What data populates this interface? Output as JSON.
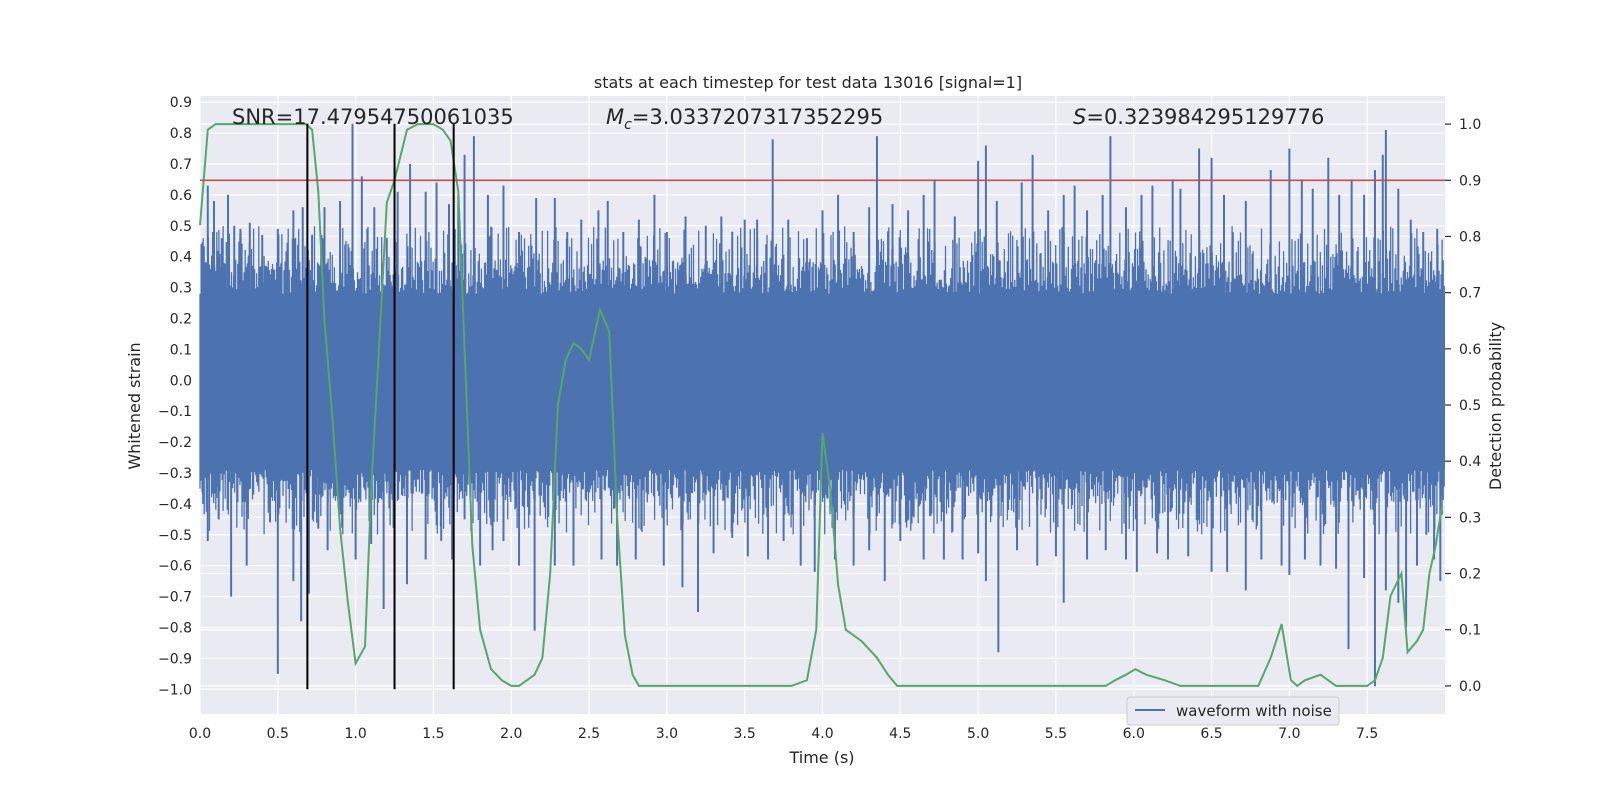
{
  "chart_data": {
    "type": "line",
    "title": "stats at each timestep for test data 13016 [signal=1]",
    "xlabel": "Time (s)",
    "ylabel": "Whitened strain",
    "y2label": "Detection probability",
    "xlim": [
      0.0,
      8.0
    ],
    "ylim": [
      -1.08,
      0.92
    ],
    "y2lim": [
      -0.05,
      1.05
    ],
    "x_ticks": [
      "0.0",
      "0.5",
      "1.0",
      "1.5",
      "2.0",
      "2.5",
      "3.0",
      "3.5",
      "4.0",
      "4.5",
      "5.0",
      "5.5",
      "6.0",
      "6.5",
      "7.0",
      "7.5"
    ],
    "y_ticks": [
      "0.9",
      "0.8",
      "0.7",
      "0.6",
      "0.5",
      "0.4",
      "0.3",
      "0.2",
      "0.1",
      "0.0",
      "-0.1",
      "-0.2",
      "-0.3",
      "-0.4",
      "-0.5",
      "-0.6",
      "-0.7",
      "-0.8",
      "-0.9",
      "-1.0"
    ],
    "y2_ticks": [
      "1.0",
      "0.9",
      "0.8",
      "0.7",
      "0.6",
      "0.5",
      "0.4",
      "0.3",
      "0.2",
      "0.1",
      "0.0"
    ],
    "annotations": {
      "snr": "SNR=17.47954750061035",
      "mc_symbol": "M",
      "mc_subscript": "c",
      "mc_value": "=3.0337207317352295",
      "s_symbol": "S",
      "s_value": "=0.323984295129776"
    },
    "threshold": 0.9,
    "event_times": [
      0.69,
      1.25,
      1.63
    ],
    "event_line_range": [
      -1.0,
      0.83
    ],
    "legend": {
      "label": "waveform with noise",
      "position": "lower right"
    },
    "waveform": {
      "name": "waveform with noise",
      "color": "#4c72b0",
      "core_upper": 0.28,
      "core_lower": -0.29,
      "typical_max": 0.5,
      "typical_min": -0.5,
      "peaks": [
        [
          0.02,
          0.33
        ],
        [
          0.05,
          0.63
        ],
        [
          0.09,
          0.58
        ],
        [
          0.14,
          0.46
        ],
        [
          0.18,
          0.6
        ],
        [
          0.22,
          0.5
        ],
        [
          0.26,
          0.49
        ],
        [
          0.32,
          0.51
        ],
        [
          0.4,
          0.47
        ],
        [
          0.5,
          0.49
        ],
        [
          0.6,
          0.55
        ],
        [
          0.66,
          0.56
        ],
        [
          0.72,
          0.47
        ],
        [
          0.8,
          0.56
        ],
        [
          0.9,
          0.58
        ],
        [
          0.98,
          0.83
        ],
        [
          1.04,
          0.66
        ],
        [
          1.12,
          0.56
        ],
        [
          1.2,
          0.46
        ],
        [
          1.27,
          0.61
        ],
        [
          1.35,
          0.7
        ],
        [
          1.45,
          0.61
        ],
        [
          1.52,
          0.64
        ],
        [
          1.6,
          0.57
        ],
        [
          1.66,
          0.6
        ],
        [
          1.7,
          0.73
        ],
        [
          1.76,
          0.79
        ],
        [
          1.85,
          0.6
        ],
        [
          1.95,
          0.63
        ],
        [
          2.05,
          0.48
        ],
        [
          2.16,
          0.59
        ],
        [
          2.28,
          0.59
        ],
        [
          2.36,
          0.48
        ],
        [
          2.45,
          0.52
        ],
        [
          2.56,
          0.55
        ],
        [
          2.62,
          0.58
        ],
        [
          2.72,
          0.48
        ],
        [
          2.82,
          0.52
        ],
        [
          2.92,
          0.6
        ],
        [
          3.0,
          0.48
        ],
        [
          3.12,
          0.53
        ],
        [
          3.25,
          0.5
        ],
        [
          3.35,
          0.53
        ],
        [
          3.42,
          0.48
        ],
        [
          3.5,
          0.52
        ],
        [
          3.58,
          0.52
        ],
        [
          3.68,
          0.78
        ],
        [
          3.78,
          0.52
        ],
        [
          3.9,
          0.46
        ],
        [
          4.0,
          0.55
        ],
        [
          4.1,
          0.6
        ],
        [
          4.2,
          0.48
        ],
        [
          4.3,
          0.56
        ],
        [
          4.35,
          0.79
        ],
        [
          4.45,
          0.57
        ],
        [
          4.55,
          0.55
        ],
        [
          4.65,
          0.6
        ],
        [
          4.72,
          0.65
        ],
        [
          4.85,
          0.53
        ],
        [
          5.0,
          0.71
        ],
        [
          5.05,
          0.76
        ],
        [
          5.12,
          0.58
        ],
        [
          5.28,
          0.64
        ],
        [
          5.35,
          0.73
        ],
        [
          5.45,
          0.55
        ],
        [
          5.55,
          0.6
        ],
        [
          5.62,
          0.63
        ],
        [
          5.7,
          0.55
        ],
        [
          5.8,
          0.6
        ],
        [
          5.85,
          0.79
        ],
        [
          5.95,
          0.56
        ],
        [
          6.05,
          0.6
        ],
        [
          6.12,
          0.63
        ],
        [
          6.25,
          0.65
        ],
        [
          6.3,
          0.62
        ],
        [
          6.42,
          0.75
        ],
        [
          6.5,
          0.72
        ],
        [
          6.58,
          0.6
        ],
        [
          6.72,
          0.58
        ],
        [
          6.88,
          0.68
        ],
        [
          7.0,
          0.75
        ],
        [
          7.08,
          0.65
        ],
        [
          7.15,
          0.62
        ],
        [
          7.25,
          0.72
        ],
        [
          7.32,
          0.6
        ],
        [
          7.4,
          0.65
        ],
        [
          7.48,
          0.6
        ],
        [
          7.55,
          0.68
        ],
        [
          7.6,
          0.73
        ],
        [
          7.62,
          0.81
        ],
        [
          7.7,
          0.62
        ],
        [
          7.78,
          0.52
        ],
        [
          7.86,
          0.48
        ],
        [
          7.95,
          0.49
        ]
      ],
      "troughs": [
        [
          0.02,
          -0.4
        ],
        [
          0.05,
          -0.52
        ],
        [
          0.12,
          -0.45
        ],
        [
          0.2,
          -0.7
        ],
        [
          0.3,
          -0.6
        ],
        [
          0.45,
          -0.46
        ],
        [
          0.5,
          -0.95
        ],
        [
          0.6,
          -0.65
        ],
        [
          0.65,
          -0.78
        ],
        [
          0.7,
          -0.69
        ],
        [
          0.76,
          -0.48
        ],
        [
          0.82,
          -0.55
        ],
        [
          0.9,
          -0.42
        ],
        [
          1.0,
          -0.58
        ],
        [
          1.1,
          -0.53
        ],
        [
          1.18,
          -0.74
        ],
        [
          1.25,
          -0.68
        ],
        [
          1.33,
          -0.66
        ],
        [
          1.45,
          -0.58
        ],
        [
          1.55,
          -0.52
        ],
        [
          1.62,
          -0.58
        ],
        [
          1.7,
          -0.45
        ],
        [
          1.8,
          -0.6
        ],
        [
          1.88,
          -0.55
        ],
        [
          1.95,
          -0.52
        ],
        [
          2.05,
          -0.6
        ],
        [
          2.15,
          -0.81
        ],
        [
          2.28,
          -0.6
        ],
        [
          2.4,
          -0.6
        ],
        [
          2.58,
          -0.58
        ],
        [
          2.68,
          -0.6
        ],
        [
          2.8,
          -0.58
        ],
        [
          2.98,
          -0.6
        ],
        [
          3.1,
          -0.67
        ],
        [
          3.2,
          -0.75
        ],
        [
          3.3,
          -0.56
        ],
        [
          3.42,
          -0.51
        ],
        [
          3.52,
          -0.57
        ],
        [
          3.65,
          -0.58
        ],
        [
          3.75,
          -0.52
        ],
        [
          3.86,
          -0.6
        ],
        [
          3.95,
          -0.62
        ],
        [
          4.08,
          -0.58
        ],
        [
          4.2,
          -0.6
        ],
        [
          4.3,
          -0.55
        ],
        [
          4.4,
          -0.65
        ],
        [
          4.5,
          -0.52
        ],
        [
          4.65,
          -0.58
        ],
        [
          4.78,
          -0.58
        ],
        [
          4.9,
          -0.58
        ],
        [
          5.0,
          -0.56
        ],
        [
          5.05,
          -0.65
        ],
        [
          5.13,
          -0.88
        ],
        [
          5.25,
          -0.55
        ],
        [
          5.38,
          -0.6
        ],
        [
          5.5,
          -0.57
        ],
        [
          5.55,
          -0.72
        ],
        [
          5.7,
          -0.58
        ],
        [
          5.82,
          -0.55
        ],
        [
          5.95,
          -0.58
        ],
        [
          6.02,
          -0.62
        ],
        [
          6.15,
          -0.56
        ],
        [
          6.22,
          -0.58
        ],
        [
          6.35,
          -0.57
        ],
        [
          6.5,
          -0.62
        ],
        [
          6.6,
          -0.62
        ],
        [
          6.72,
          -0.68
        ],
        [
          6.82,
          -0.58
        ],
        [
          6.95,
          -0.6
        ],
        [
          7.0,
          -0.63
        ],
        [
          7.1,
          -0.58
        ],
        [
          7.2,
          -0.6
        ],
        [
          7.3,
          -0.61
        ],
        [
          7.38,
          -0.87
        ],
        [
          7.48,
          -0.64
        ],
        [
          7.55,
          -0.99
        ],
        [
          7.62,
          -0.68
        ],
        [
          7.7,
          -0.72
        ],
        [
          7.75,
          -0.8
        ],
        [
          7.82,
          -0.6
        ],
        [
          7.88,
          -0.5
        ],
        [
          7.93,
          -0.58
        ],
        [
          7.97,
          -0.65
        ]
      ]
    },
    "probability": {
      "color": "#55a868",
      "x": [
        0.0,
        0.05,
        0.1,
        0.17,
        0.3,
        0.5,
        0.65,
        0.68,
        0.72,
        0.76,
        0.8,
        0.85,
        0.9,
        0.95,
        1.0,
        1.06,
        1.1,
        1.16,
        1.2,
        1.25,
        1.33,
        1.4,
        1.45,
        1.5,
        1.56,
        1.61,
        1.66,
        1.7,
        1.75,
        1.8,
        1.87,
        1.94,
        2.0,
        2.05,
        2.1,
        2.15,
        2.2,
        2.25,
        2.3,
        2.35,
        2.4,
        2.45,
        2.5,
        2.57,
        2.63,
        2.68,
        2.73,
        2.78,
        2.82,
        2.88,
        2.95,
        3.05,
        3.2,
        3.4,
        3.6,
        3.8,
        3.9,
        3.96,
        4.0,
        4.05,
        4.1,
        4.15,
        4.25,
        4.35,
        4.42,
        4.48,
        4.55,
        4.7,
        4.85,
        5.0,
        5.1,
        5.25,
        5.4,
        5.6,
        5.75,
        5.82,
        5.88,
        5.95,
        6.01,
        6.08,
        6.2,
        6.3,
        6.5,
        6.7,
        6.8,
        6.88,
        6.95,
        7.01,
        7.05,
        7.1,
        7.2,
        7.25,
        7.3,
        7.4,
        7.5,
        7.55,
        7.6,
        7.65,
        7.72,
        7.76,
        7.82,
        7.86,
        7.9,
        7.94,
        7.98
      ],
      "y": [
        0.82,
        0.99,
        1.0,
        1.0,
        1.0,
        1.0,
        1.0,
        1.0,
        0.99,
        0.88,
        0.65,
        0.48,
        0.28,
        0.15,
        0.04,
        0.07,
        0.35,
        0.65,
        0.86,
        0.9,
        0.99,
        1.0,
        1.0,
        1.0,
        0.99,
        0.97,
        0.88,
        0.6,
        0.25,
        0.1,
        0.03,
        0.01,
        0.0,
        0.0,
        0.01,
        0.02,
        0.05,
        0.2,
        0.5,
        0.58,
        0.61,
        0.6,
        0.58,
        0.67,
        0.63,
        0.3,
        0.09,
        0.02,
        0.0,
        0.0,
        0.0,
        0.0,
        0.0,
        0.0,
        0.0,
        0.0,
        0.01,
        0.1,
        0.45,
        0.35,
        0.18,
        0.1,
        0.08,
        0.05,
        0.02,
        0.0,
        0.0,
        0.0,
        0.0,
        0.0,
        0.0,
        0.0,
        0.0,
        0.0,
        0.0,
        0.0,
        0.01,
        0.02,
        0.03,
        0.02,
        0.01,
        0.0,
        0.0,
        0.0,
        0.0,
        0.05,
        0.11,
        0.01,
        0.0,
        0.01,
        0.02,
        0.01,
        0.0,
        0.0,
        0.0,
        0.01,
        0.05,
        0.16,
        0.2,
        0.06,
        0.08,
        0.1,
        0.2,
        0.25,
        0.32
      ]
    }
  }
}
